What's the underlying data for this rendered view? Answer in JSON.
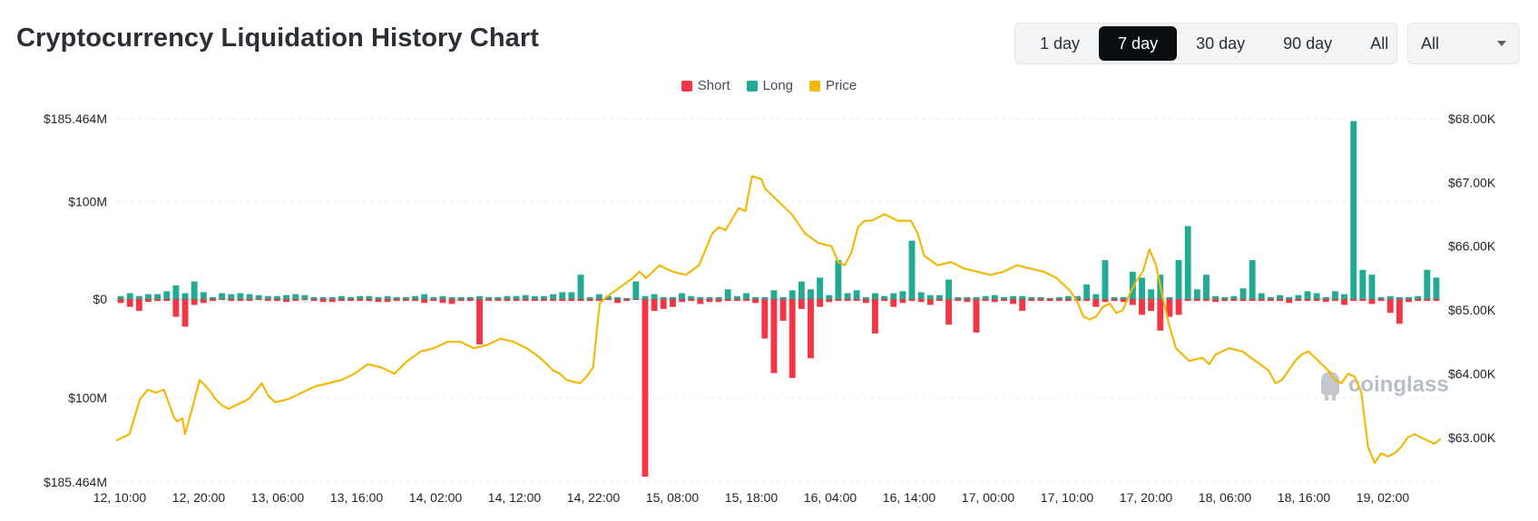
{
  "header": {
    "title": "Cryptocurrency Liquidation History Chart",
    "ranges": [
      "1 day",
      "7 day",
      "30 day",
      "90 day",
      "All"
    ],
    "active_range": "7 day",
    "coin_select": "All"
  },
  "watermark": "coinglass",
  "colors": {
    "short": "#f23645",
    "long": "#22ab94",
    "price": "#f0b90b",
    "grid": "#e9ecef"
  },
  "chart_data": {
    "type": "bar+line",
    "legend": [
      "Short",
      "Long",
      "Price"
    ],
    "legend_position": "top-center",
    "left_axis": {
      "ticks": [
        "$185.464M",
        "$100M",
        "$0",
        "$100M",
        "$185.464M"
      ],
      "range": [
        -185.464,
        185.464
      ],
      "unit": "M USD"
    },
    "right_axis": {
      "ticks": [
        "$68.00K",
        "$67.00K",
        "$66.00K",
        "$65.00K",
        "$64.00K",
        "$63.00K"
      ],
      "range": [
        62.3,
        68.0
      ],
      "unit": "K USD"
    },
    "x_ticks": [
      "12, 10:00",
      "12, 20:00",
      "13, 06:00",
      "13, 16:00",
      "14, 02:00",
      "14, 12:00",
      "14, 22:00",
      "15, 08:00",
      "15, 18:00",
      "16, 04:00",
      "16, 14:00",
      "17, 00:00",
      "17, 10:00",
      "17, 20:00",
      "18, 06:00",
      "18, 16:00",
      "19, 02:00"
    ],
    "grid": true,
    "long_values": [
      3,
      6,
      3,
      5,
      5,
      8,
      14,
      6,
      18,
      7,
      2,
      6,
      5,
      6,
      5,
      4,
      3,
      3,
      4,
      5,
      4,
      2,
      2,
      2,
      3,
      2,
      3,
      3,
      2,
      3,
      2,
      2,
      3,
      5,
      2,
      3,
      2,
      2,
      2,
      3,
      2,
      2,
      3,
      3,
      4,
      3,
      3,
      5,
      7,
      7,
      25,
      2,
      5,
      3,
      2,
      1,
      18,
      3,
      5,
      2,
      2,
      6,
      3,
      2,
      2,
      2,
      10,
      3,
      6,
      2,
      2,
      9,
      2,
      9,
      18,
      10,
      22,
      4,
      40,
      6,
      9,
      2,
      6,
      3,
      6,
      8,
      60,
      7,
      4,
      4,
      20,
      2,
      2,
      2,
      3,
      4,
      2,
      3,
      3,
      2,
      2,
      1,
      2,
      3,
      3,
      15,
      5,
      40,
      2,
      2,
      28,
      22,
      10,
      25,
      2,
      40,
      75,
      10,
      25,
      3,
      2,
      3,
      11,
      40,
      6,
      2,
      4,
      2,
      4,
      8,
      6,
      2,
      8,
      5,
      183,
      30,
      25,
      2,
      3,
      2,
      2,
      3,
      30,
      22
    ],
    "short_values": [
      4,
      8,
      12,
      3,
      2,
      2,
      18,
      28,
      6,
      4,
      2,
      1,
      2,
      2,
      2,
      1,
      2,
      2,
      3,
      2,
      1,
      2,
      3,
      3,
      2,
      2,
      2,
      2,
      3,
      3,
      2,
      2,
      2,
      4,
      2,
      4,
      5,
      2,
      2,
      46,
      2,
      2,
      2,
      2,
      2,
      2,
      2,
      2,
      2,
      2,
      2,
      2,
      2,
      1,
      4,
      2,
      1,
      180,
      12,
      10,
      8,
      3,
      2,
      5,
      3,
      3,
      2,
      2,
      2,
      4,
      40,
      75,
      22,
      80,
      10,
      60,
      8,
      3,
      2,
      2,
      2,
      4,
      35,
      2,
      8,
      4,
      2,
      3,
      6,
      2,
      26,
      2,
      3,
      34,
      2,
      3,
      2,
      5,
      12,
      2,
      2,
      2,
      2,
      2,
      2,
      2,
      8,
      3,
      2,
      3,
      6,
      16,
      12,
      32,
      18,
      16,
      2,
      2,
      2,
      3,
      2,
      2,
      2,
      2,
      2,
      2,
      2,
      4,
      2,
      2,
      2,
      3,
      2,
      6,
      2,
      2,
      5,
      2,
      14,
      25,
      3,
      2,
      2,
      2
    ],
    "price_points": [
      [
        0,
        62.95
      ],
      [
        0.01,
        63.05
      ],
      [
        0.018,
        63.6
      ],
      [
        0.024,
        63.75
      ],
      [
        0.03,
        63.7
      ],
      [
        0.036,
        63.75
      ],
      [
        0.044,
        63.3
      ],
      [
        0.046,
        63.25
      ],
      [
        0.05,
        63.3
      ],
      [
        0.052,
        63.05
      ],
      [
        0.058,
        63.5
      ],
      [
        0.063,
        63.9
      ],
      [
        0.07,
        63.75
      ],
      [
        0.075,
        63.6
      ],
      [
        0.08,
        63.5
      ],
      [
        0.085,
        63.45
      ],
      [
        0.09,
        63.5
      ],
      [
        0.1,
        63.6
      ],
      [
        0.11,
        63.85
      ],
      [
        0.115,
        63.65
      ],
      [
        0.12,
        63.55
      ],
      [
        0.13,
        63.6
      ],
      [
        0.14,
        63.7
      ],
      [
        0.15,
        63.8
      ],
      [
        0.16,
        63.85
      ],
      [
        0.17,
        63.9
      ],
      [
        0.18,
        64.0
      ],
      [
        0.19,
        64.15
      ],
      [
        0.2,
        64.1
      ],
      [
        0.21,
        64.0
      ],
      [
        0.22,
        64.2
      ],
      [
        0.23,
        64.35
      ],
      [
        0.24,
        64.4
      ],
      [
        0.25,
        64.5
      ],
      [
        0.26,
        64.5
      ],
      [
        0.27,
        64.4
      ],
      [
        0.28,
        64.45
      ],
      [
        0.29,
        64.55
      ],
      [
        0.3,
        64.5
      ],
      [
        0.31,
        64.4
      ],
      [
        0.32,
        64.25
      ],
      [
        0.33,
        64.05
      ],
      [
        0.335,
        64.0
      ],
      [
        0.34,
        63.9
      ],
      [
        0.35,
        63.85
      ],
      [
        0.355,
        63.95
      ],
      [
        0.36,
        64.1
      ],
      [
        0.365,
        65.1
      ],
      [
        0.37,
        65.2
      ],
      [
        0.38,
        65.35
      ],
      [
        0.39,
        65.5
      ],
      [
        0.395,
        65.6
      ],
      [
        0.4,
        65.5
      ],
      [
        0.41,
        65.7
      ],
      [
        0.42,
        65.6
      ],
      [
        0.43,
        65.55
      ],
      [
        0.44,
        65.7
      ],
      [
        0.45,
        66.2
      ],
      [
        0.455,
        66.3
      ],
      [
        0.46,
        66.25
      ],
      [
        0.47,
        66.6
      ],
      [
        0.475,
        66.55
      ],
      [
        0.48,
        67.1
      ],
      [
        0.487,
        67.05
      ],
      [
        0.49,
        66.9
      ],
      [
        0.5,
        66.7
      ],
      [
        0.51,
        66.5
      ],
      [
        0.52,
        66.2
      ],
      [
        0.53,
        66.05
      ],
      [
        0.54,
        66.0
      ],
      [
        0.545,
        65.75
      ],
      [
        0.55,
        65.7
      ],
      [
        0.555,
        65.9
      ],
      [
        0.56,
        66.3
      ],
      [
        0.565,
        66.4
      ],
      [
        0.57,
        66.4
      ],
      [
        0.58,
        66.5
      ],
      [
        0.585,
        66.45
      ],
      [
        0.59,
        66.4
      ],
      [
        0.6,
        66.4
      ],
      [
        0.605,
        66.2
      ],
      [
        0.61,
        65.85
      ],
      [
        0.62,
        65.7
      ],
      [
        0.63,
        65.75
      ],
      [
        0.64,
        65.65
      ],
      [
        0.65,
        65.6
      ],
      [
        0.66,
        65.55
      ],
      [
        0.67,
        65.6
      ],
      [
        0.68,
        65.7
      ],
      [
        0.69,
        65.65
      ],
      [
        0.7,
        65.6
      ],
      [
        0.71,
        65.5
      ],
      [
        0.72,
        65.3
      ],
      [
        0.725,
        65.15
      ],
      [
        0.73,
        64.9
      ],
      [
        0.735,
        64.85
      ],
      [
        0.74,
        64.9
      ],
      [
        0.745,
        65.05
      ],
      [
        0.75,
        65.1
      ],
      [
        0.755,
        64.95
      ],
      [
        0.76,
        65.0
      ],
      [
        0.765,
        65.25
      ],
      [
        0.77,
        65.45
      ],
      [
        0.775,
        65.6
      ],
      [
        0.78,
        65.95
      ],
      [
        0.785,
        65.7
      ],
      [
        0.79,
        65.2
      ],
      [
        0.795,
        64.75
      ],
      [
        0.8,
        64.4
      ],
      [
        0.805,
        64.3
      ],
      [
        0.81,
        64.2
      ],
      [
        0.82,
        64.25
      ],
      [
        0.825,
        64.15
      ],
      [
        0.83,
        64.3
      ],
      [
        0.84,
        64.4
      ],
      [
        0.85,
        64.35
      ],
      [
        0.86,
        64.2
      ],
      [
        0.87,
        64.05
      ],
      [
        0.875,
        63.85
      ],
      [
        0.88,
        63.9
      ],
      [
        0.885,
        64.05
      ],
      [
        0.89,
        64.2
      ],
      [
        0.895,
        64.3
      ],
      [
        0.9,
        64.35
      ],
      [
        0.905,
        64.25
      ],
      [
        0.91,
        64.15
      ],
      [
        0.915,
        64.05
      ],
      [
        0.92,
        63.9
      ],
      [
        0.925,
        63.85
      ],
      [
        0.93,
        64.0
      ],
      [
        0.935,
        63.95
      ],
      [
        0.94,
        63.7
      ],
      [
        0.945,
        62.85
      ],
      [
        0.95,
        62.6
      ],
      [
        0.955,
        62.75
      ],
      [
        0.96,
        62.7
      ],
      [
        0.965,
        62.75
      ],
      [
        0.97,
        62.85
      ],
      [
        0.975,
        63.0
      ],
      [
        0.98,
        63.05
      ],
      [
        0.985,
        63.0
      ],
      [
        0.99,
        62.95
      ],
      [
        0.995,
        62.9
      ],
      [
        1,
        62.98
      ]
    ]
  }
}
